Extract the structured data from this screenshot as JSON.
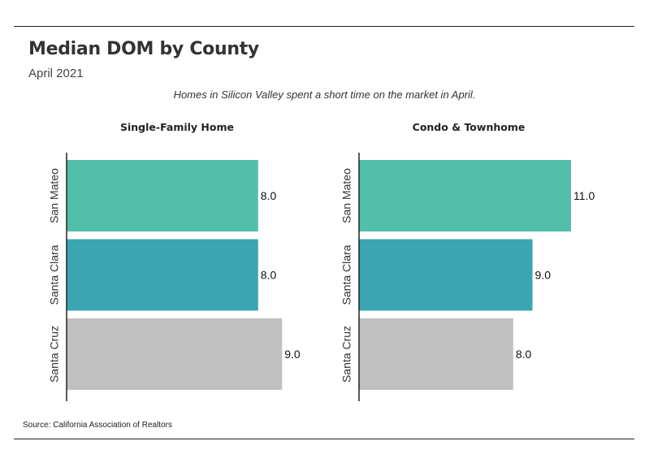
{
  "header": {
    "title": "Median DOM by County",
    "subtitle": "April 2021",
    "caption": "Homes in Silicon Valley spent a short time on the market in April."
  },
  "footer": {
    "source": "Source:  California Association of Realtors"
  },
  "colors": {
    "San Mateo": "#52bfaa",
    "Santa Clara": "#3aa6b2",
    "Santa Cruz": "#c0c0c0",
    "axis": "#222222"
  },
  "chart_data": [
    {
      "type": "bar",
      "orientation": "horizontal",
      "title": "Single-Family Home",
      "categories": [
        "San Mateo",
        "Santa Clara",
        "Santa Cruz"
      ],
      "values": [
        8.0,
        8.0,
        9.0
      ],
      "value_labels": [
        "8.0",
        "8.0",
        "9.0"
      ],
      "xlim": [
        0,
        9.5
      ],
      "grid": false,
      "legend": "none"
    },
    {
      "type": "bar",
      "orientation": "horizontal",
      "title": "Condo & Townhome",
      "categories": [
        "San Mateo",
        "Santa Clara",
        "Santa Cruz"
      ],
      "values": [
        11.0,
        9.0,
        8.0
      ],
      "value_labels": [
        "11.0",
        "9.0",
        "8.0"
      ],
      "xlim": [
        0,
        11.8
      ],
      "grid": false,
      "legend": "none"
    }
  ]
}
